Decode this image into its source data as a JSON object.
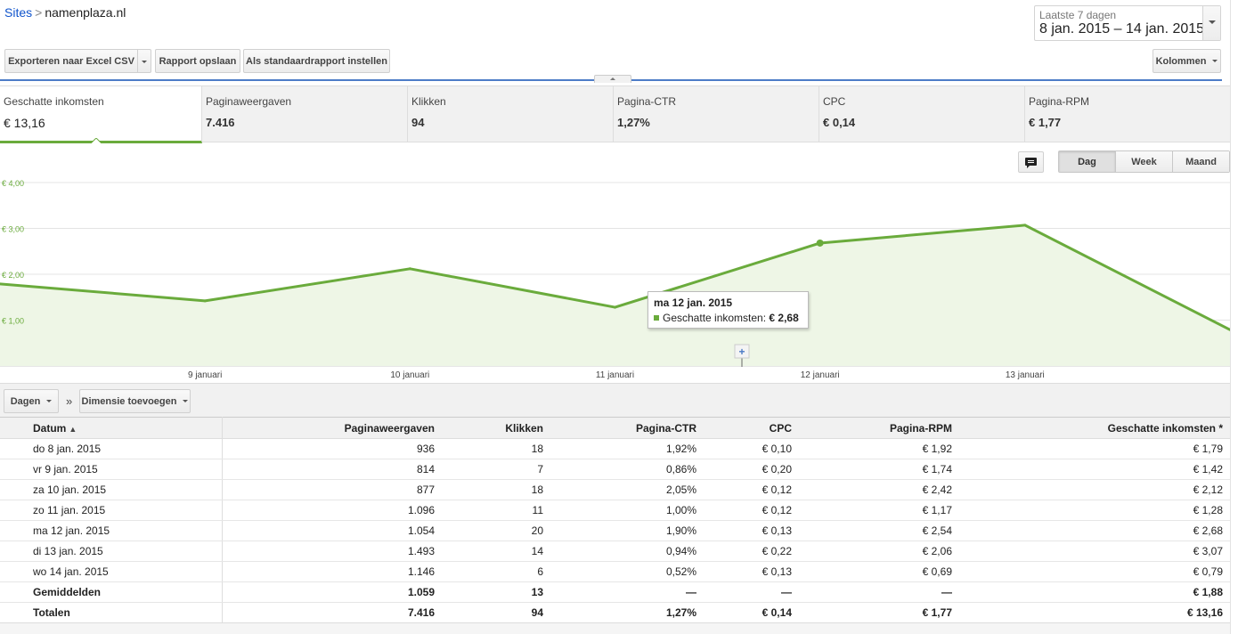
{
  "breadcrumb": {
    "root": "Sites",
    "separator": ">",
    "current": "namenplaza.nl"
  },
  "date_range": {
    "label": "Laatste 7 dagen",
    "value": "8 jan. 2015 – 14 jan. 2015"
  },
  "toolbar": {
    "export": "Exporteren naar Excel CSV",
    "save_report": "Rapport opslaan",
    "set_default": "Als standaardrapport instellen",
    "columns": "Kolommen"
  },
  "metrics": [
    {
      "label": "Geschatte inkomsten",
      "value": "€ 13,16",
      "active": true
    },
    {
      "label": "Paginaweergaven",
      "value": "7.416"
    },
    {
      "label": "Klikken",
      "value": "94"
    },
    {
      "label": "Pagina-CTR",
      "value": "1,27%"
    },
    {
      "label": "CPC",
      "value": "€ 0,14"
    },
    {
      "label": "Pagina-RPM",
      "value": "€ 1,77"
    }
  ],
  "granularity": {
    "options": [
      "Dag",
      "Week",
      "Maand"
    ],
    "selected": "Dag"
  },
  "chart_data": {
    "type": "area",
    "series": [
      {
        "name": "Geschatte inkomsten",
        "values": [
          1.79,
          1.42,
          2.12,
          1.28,
          2.68,
          3.07,
          0.79
        ]
      }
    ],
    "x": [
      "8 jan. 2015",
      "9 jan. 2015",
      "10 jan. 2015",
      "11 jan. 2015",
      "12 jan. 2015",
      "13 jan. 2015",
      "14 jan. 2015"
    ],
    "x_tick_labels": [
      "9 januari",
      "10 januari",
      "11 januari",
      "12 januari",
      "13 januari"
    ],
    "y_tick_labels": [
      "€ 1,00",
      "€ 2,00",
      "€ 3,00",
      "€ 4,00"
    ],
    "ylim": [
      0,
      4
    ],
    "grid": true,
    "color": "#6aab3c",
    "fill_color": "#eef6e6",
    "highlighted_point": 4
  },
  "tooltip": {
    "title": "ma 12 jan. 2015",
    "series_label": "Geschatte inkomsten:",
    "value": "€ 2,68"
  },
  "dimension_bar": {
    "dimension": "Dagen",
    "separator": "»",
    "add_dimension": "Dimensie toevoegen"
  },
  "table": {
    "columns": [
      "Datum",
      "Paginaweergaven",
      "Klikken",
      "Pagina-CTR",
      "CPC",
      "Pagina-RPM",
      "Geschatte inkomsten *"
    ],
    "sort_indicator": "▲",
    "rows": [
      [
        "do 8 jan. 2015",
        "936",
        "18",
        "1,92%",
        "€ 0,10",
        "€ 1,92",
        "€ 1,79"
      ],
      [
        "vr 9 jan. 2015",
        "814",
        "7",
        "0,86%",
        "€ 0,20",
        "€ 1,74",
        "€ 1,42"
      ],
      [
        "za 10 jan. 2015",
        "877",
        "18",
        "2,05%",
        "€ 0,12",
        "€ 2,42",
        "€ 2,12"
      ],
      [
        "zo 11 jan. 2015",
        "1.096",
        "11",
        "1,00%",
        "€ 0,12",
        "€ 1,17",
        "€ 1,28"
      ],
      [
        "ma 12 jan. 2015",
        "1.054",
        "20",
        "1,90%",
        "€ 0,13",
        "€ 2,54",
        "€ 2,68"
      ],
      [
        "di 13 jan. 2015",
        "1.493",
        "14",
        "0,94%",
        "€ 0,22",
        "€ 2,06",
        "€ 3,07"
      ],
      [
        "wo 14 jan. 2015",
        "1.146",
        "6",
        "0,52%",
        "€ 0,13",
        "€ 0,69",
        "€ 0,79"
      ]
    ],
    "summary": [
      [
        "Gemiddelden",
        "1.059",
        "13",
        "—",
        "—",
        "—",
        "€ 1,88"
      ],
      [
        "Totalen",
        "7.416",
        "94",
        "1,27%",
        "€ 0,14",
        "€ 1,77",
        "€ 13,16"
      ]
    ]
  }
}
